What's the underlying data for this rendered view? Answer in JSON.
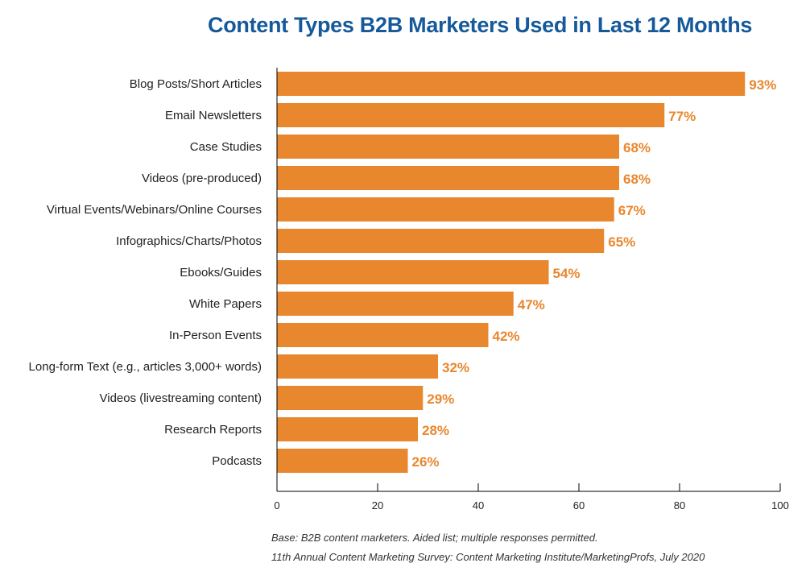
{
  "chart_data": {
    "type": "bar",
    "orientation": "horizontal",
    "title": "Content Types B2B Marketers Used in Last 12 Months",
    "categories": [
      "Blog Posts/Short Articles",
      "Email Newsletters",
      "Case Studies",
      "Videos (pre-produced)",
      "Virtual Events/Webinars/Online Courses",
      "Infographics/Charts/Photos",
      "Ebooks/Guides",
      "White Papers",
      "In-Person Events",
      "Long-form Text (e.g., articles 3,000+ words)",
      "Videos (livestreaming content)",
      "Research Reports",
      "Podcasts"
    ],
    "values": [
      93,
      77,
      68,
      68,
      67,
      65,
      54,
      47,
      42,
      32,
      29,
      28,
      26
    ],
    "data_labels": [
      "93%",
      "77%",
      "68%",
      "68%",
      "67%",
      "65%",
      "54%",
      "47%",
      "42%",
      "32%",
      "29%",
      "28%",
      "26%"
    ],
    "xlim": [
      0,
      100
    ],
    "xticks": [
      "0",
      "20",
      "40",
      "60",
      "80",
      "100"
    ],
    "grid": false,
    "legend": "none",
    "bar_color": "#e8872e",
    "title_color": "#15599a"
  },
  "footnotes": [
    "Base: B2B content marketers. Aided list; multiple responses permitted.",
    "11th Annual Content Marketing Survey: Content Marketing Institute/MarketingProfs, July 2020"
  ]
}
